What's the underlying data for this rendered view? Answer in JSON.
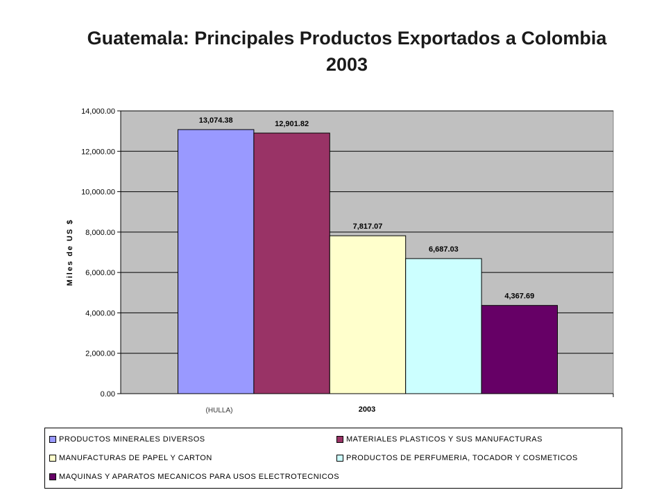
{
  "chart_data": {
    "type": "bar",
    "title_line1": "Guatemala: Principales Productos Exportados a Colombia",
    "title_line2": "2003",
    "ylabel": "Miles de US $",
    "xlabel": "2003",
    "x_note": "(HULLA)",
    "ylim": [
      0,
      14000
    ],
    "yticks": [
      "0.00",
      "2,000.00",
      "4,000.00",
      "6,000.00",
      "8,000.00",
      "10,000.00",
      "12,000.00",
      "14,000.00"
    ],
    "plot_background": "#c0c0c0",
    "grid": true,
    "legend_position": "bottom",
    "series": [
      {
        "name": "PRODUCTOS MINERALES DIVERSOS",
        "value": 13074.38,
        "label": "13,074.38",
        "color": "#9999ff"
      },
      {
        "name": "MATERIALES PLASTICOS Y SUS MANUFACTURAS",
        "value": 12901.82,
        "label": "12,901.82",
        "color": "#993366"
      },
      {
        "name": "MANUFACTURAS DE PAPEL Y CARTON",
        "value": 7817.07,
        "label": "7,817.07",
        "color": "#ffffcc"
      },
      {
        "name": "PRODUCTOS DE PERFUMERIA, TOCADOR Y COSMETICOS",
        "value": 6687.03,
        "label": "6,687.03",
        "color": "#ccffff"
      },
      {
        "name": "MAQUINAS Y APARATOS MECANICOS PARA USOS ELECTROTECNICOS",
        "value": 4367.69,
        "label": "4,367.69",
        "color": "#660066"
      }
    ]
  }
}
